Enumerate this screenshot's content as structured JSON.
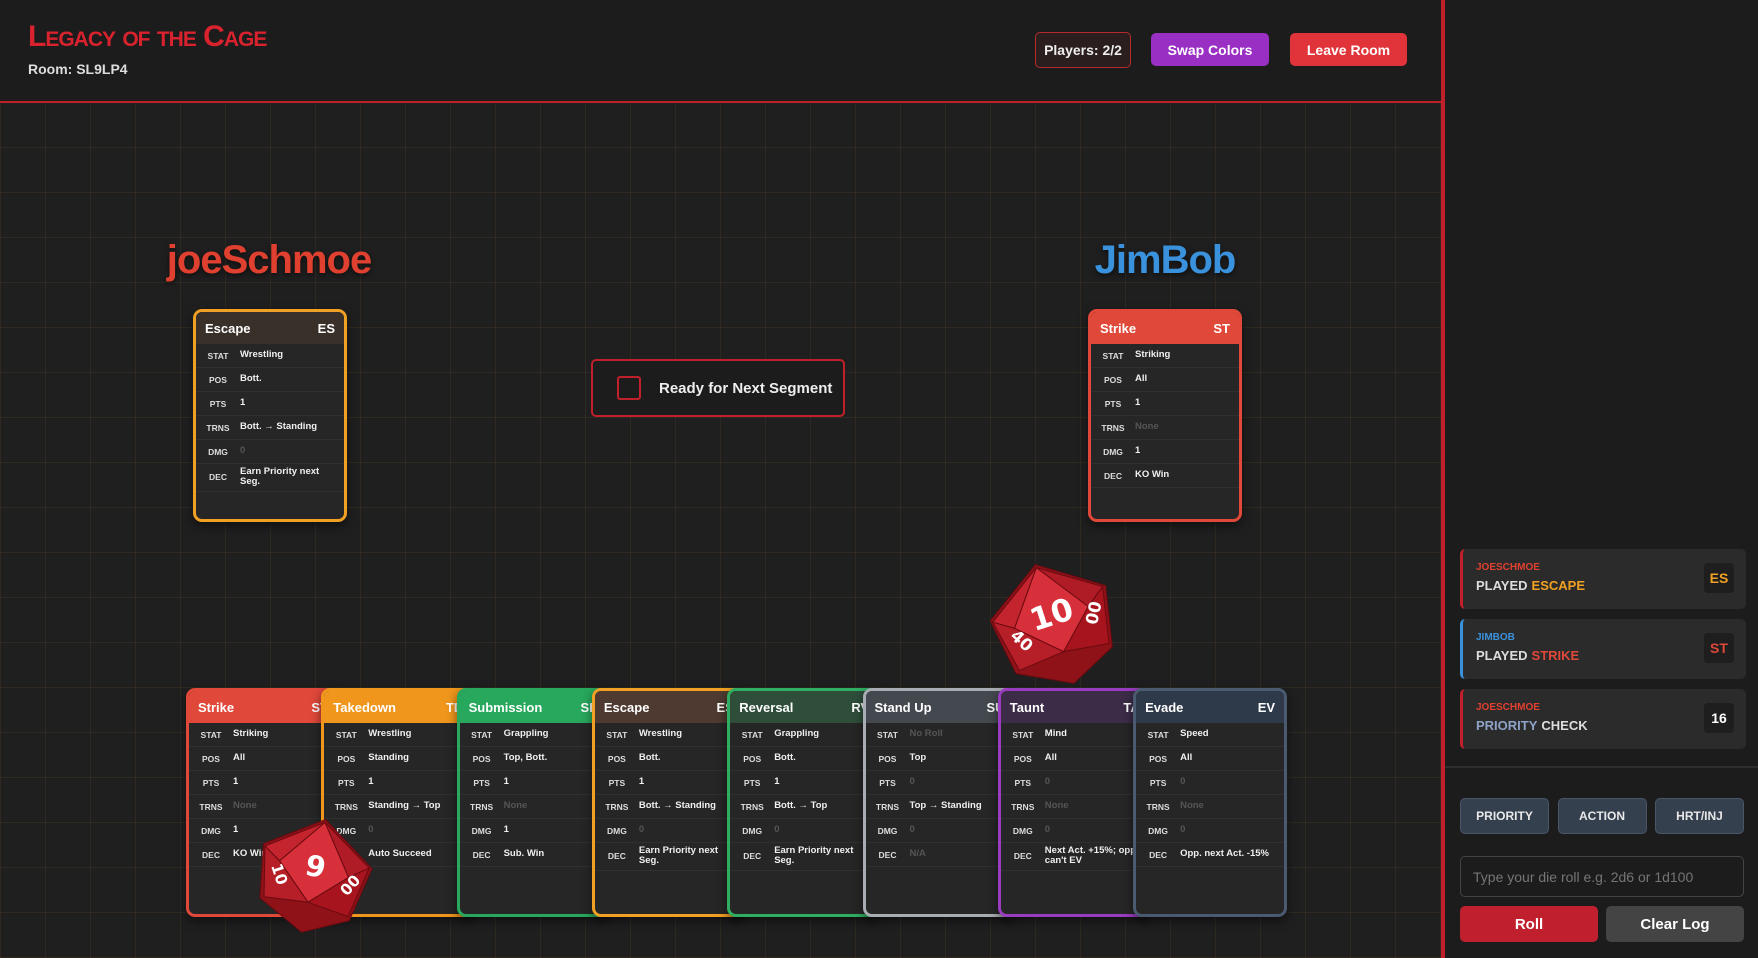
{
  "header": {
    "title": "Legacy of the Cage",
    "room": "Room: SL9LP4",
    "players": "Players: 2/2",
    "swap": "Swap Colors",
    "leave": "Leave Room"
  },
  "players": [
    {
      "name": "joeSchmoe",
      "color": "#e0402f",
      "card": {
        "name": "Escape",
        "abbr": "ES",
        "border": "#f0a022",
        "head": "#3a302a",
        "rows": [
          {
            "k": "STAT",
            "v": "Wrestling"
          },
          {
            "k": "POS",
            "v": "Bott."
          },
          {
            "k": "PTS",
            "v": "1"
          },
          {
            "k": "TRNS",
            "v": "Bott. → Standing"
          },
          {
            "k": "DMG",
            "v": "0",
            "dim": true
          },
          {
            "k": "DEC",
            "v": "Earn Priority next Seg."
          }
        ]
      }
    },
    {
      "name": "JimBob",
      "color": "#3a92dc",
      "card": {
        "name": "Strike",
        "abbr": "ST",
        "border": "#e0483a",
        "head": "#e0483a",
        "rows": [
          {
            "k": "STAT",
            "v": "Striking"
          },
          {
            "k": "POS",
            "v": "All"
          },
          {
            "k": "PTS",
            "v": "1"
          },
          {
            "k": "TRNS",
            "v": "None",
            "dim": true
          },
          {
            "k": "DMG",
            "v": "1"
          },
          {
            "k": "DEC",
            "v": "KO Win"
          }
        ]
      }
    }
  ],
  "ready": "Ready for Next Segment",
  "hand": [
    {
      "name": "Strike",
      "abbr": "ST",
      "border": "#e0483a",
      "head": "#e0483a",
      "rows": [
        {
          "k": "STAT",
          "v": "Striking"
        },
        {
          "k": "POS",
          "v": "All"
        },
        {
          "k": "PTS",
          "v": "1"
        },
        {
          "k": "TRNS",
          "v": "None",
          "dim": true
        },
        {
          "k": "DMG",
          "v": "1"
        },
        {
          "k": "DEC",
          "v": "KO Win"
        }
      ]
    },
    {
      "name": "Takedown",
      "abbr": "TD",
      "border": "#f0961c",
      "head": "#f0961c",
      "rows": [
        {
          "k": "STAT",
          "v": "Wrestling"
        },
        {
          "k": "POS",
          "v": "Standing"
        },
        {
          "k": "PTS",
          "v": "1"
        },
        {
          "k": "TRNS",
          "v": "Standing → Top"
        },
        {
          "k": "DMG",
          "v": "0",
          "dim": true
        },
        {
          "k": "DEC",
          "v": "Auto Succeed"
        }
      ]
    },
    {
      "name": "Submission",
      "abbr": "SB",
      "border": "#28a85c",
      "head": "#28a85c",
      "rows": [
        {
          "k": "STAT",
          "v": "Grappling"
        },
        {
          "k": "POS",
          "v": "Top, Bott."
        },
        {
          "k": "PTS",
          "v": "1"
        },
        {
          "k": "TRNS",
          "v": "None",
          "dim": true
        },
        {
          "k": "DMG",
          "v": "1"
        },
        {
          "k": "DEC",
          "v": "Sub. Win"
        }
      ]
    },
    {
      "name": "Escape",
      "abbr": "ES",
      "border": "#f0a022",
      "head": "#4e3a30",
      "rows": [
        {
          "k": "STAT",
          "v": "Wrestling"
        },
        {
          "k": "POS",
          "v": "Bott."
        },
        {
          "k": "PTS",
          "v": "1"
        },
        {
          "k": "TRNS",
          "v": "Bott. → Standing"
        },
        {
          "k": "DMG",
          "v": "0",
          "dim": true
        },
        {
          "k": "DEC",
          "v": "Earn Priority next Seg."
        }
      ]
    },
    {
      "name": "Reversal",
      "abbr": "RV",
      "border": "#2fae62",
      "head": "#2e4e3a",
      "rows": [
        {
          "k": "STAT",
          "v": "Grappling"
        },
        {
          "k": "POS",
          "v": "Bott."
        },
        {
          "k": "PTS",
          "v": "1"
        },
        {
          "k": "TRNS",
          "v": "Bott. → Top"
        },
        {
          "k": "DMG",
          "v": "0",
          "dim": true
        },
        {
          "k": "DEC",
          "v": "Earn Priority next Seg."
        }
      ]
    },
    {
      "name": "Stand Up",
      "abbr": "SU",
      "border": "#a8adb3",
      "head": "#44494f",
      "rows": [
        {
          "k": "STAT",
          "v": "No Roll",
          "dim": true
        },
        {
          "k": "POS",
          "v": "Top"
        },
        {
          "k": "PTS",
          "v": "0",
          "dim": true
        },
        {
          "k": "TRNS",
          "v": "Top → Standing"
        },
        {
          "k": "DMG",
          "v": "0",
          "dim": true
        },
        {
          "k": "DEC",
          "v": "N/A",
          "dim": true
        }
      ]
    },
    {
      "name": "Taunt",
      "abbr": "TA",
      "border": "#9a3cc0",
      "head": "#3c2c48",
      "rows": [
        {
          "k": "STAT",
          "v": "Mind"
        },
        {
          "k": "POS",
          "v": "All"
        },
        {
          "k": "PTS",
          "v": "0",
          "dim": true
        },
        {
          "k": "TRNS",
          "v": "None",
          "dim": true
        },
        {
          "k": "DMG",
          "v": "0",
          "dim": true
        },
        {
          "k": "DEC",
          "v": "Next Act. +15%; opp. can't EV"
        }
      ]
    },
    {
      "name": "Evade",
      "abbr": "EV",
      "border": "#4a5a70",
      "head": "#2e3a4a",
      "rows": [
        {
          "k": "STAT",
          "v": "Speed"
        },
        {
          "k": "POS",
          "v": "All"
        },
        {
          "k": "PTS",
          "v": "0",
          "dim": true
        },
        {
          "k": "TRNS",
          "v": "None",
          "dim": true
        },
        {
          "k": "DMG",
          "v": "0",
          "dim": true
        },
        {
          "k": "DEC",
          "v": "Opp. next Act. -15%"
        }
      ]
    }
  ],
  "dice": [
    {
      "faces": [
        "10",
        "40",
        "00"
      ]
    },
    {
      "faces": [
        "9",
        "10",
        "00"
      ]
    }
  ],
  "log": [
    {
      "player": "JOESCHMOE",
      "player_color": "#e0402f",
      "edge": "#c0202a",
      "line": [
        {
          "text": "PLAYED",
          "color": "#dddddd"
        },
        {
          "text": "ESCAPE",
          "color": "#f0a022"
        }
      ],
      "badge": "ES",
      "badge_color": "#f0a022"
    },
    {
      "player": "JIMBOB",
      "player_color": "#3a92dc",
      "edge": "#3a92dc",
      "line": [
        {
          "text": "PLAYED",
          "color": "#dddddd"
        },
        {
          "text": "STRIKE",
          "color": "#e0483a"
        }
      ],
      "badge": "ST",
      "badge_color": "#e0483a"
    },
    {
      "player": "JOESCHMOE",
      "player_color": "#e0402f",
      "edge": "#c0202a",
      "line": [
        {
          "text": "PRIORITY",
          "color": "#8fa3c8"
        },
        {
          "text": "CHECK",
          "color": "#dddddd"
        }
      ],
      "badge": "16",
      "badge_color": "#ffffff"
    }
  ],
  "controls": {
    "buttons": [
      "PRIORITY",
      "ACTION",
      "HRT/INJ"
    ],
    "placeholder": "Type your die roll e.g. 2d6 or 1d100",
    "roll": "Roll",
    "clear": "Clear Log"
  }
}
